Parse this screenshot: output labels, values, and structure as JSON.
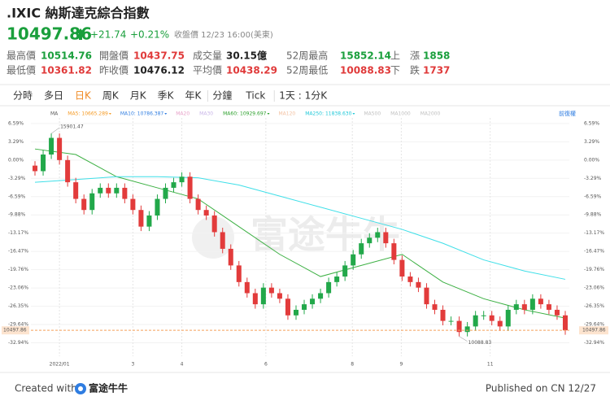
{
  "header": {
    "title": ".IXIC 納斯達克綜合指數",
    "price": "10497.86",
    "change": "+21.74",
    "change_pct": "+0.21%",
    "status": "收盤價 12/23 16:00(美東)",
    "up_color": "#1a9f3c",
    "down_color": "#e03a3a",
    "stats": [
      [
        {
          "label": "最高價",
          "value": "10514.76",
          "color": "#1a9f3c"
        },
        {
          "label": "開盤價",
          "value": "10437.75",
          "color": "#e03a3a"
        },
        {
          "label": "成交量",
          "value": "30.15億",
          "color": "#222222"
        },
        {
          "label": "52周最高",
          "value": "15852.14",
          "color": "#1a9f3c"
        },
        {
          "label": "上　漲",
          "value": "1858",
          "color": "#1a9f3c"
        }
      ],
      [
        {
          "label": "最低價",
          "value": "10361.82",
          "color": "#e03a3a"
        },
        {
          "label": "昨收價",
          "value": "10476.12",
          "color": "#222222"
        },
        {
          "label": "平均價",
          "value": "10438.29",
          "color": "#e03a3a"
        },
        {
          "label": "52周最低",
          "value": "10088.83",
          "color": "#e03a3a"
        },
        {
          "label": "下　跌",
          "value": "1737",
          "color": "#e03a3a"
        }
      ]
    ],
    "tabs": [
      "分時",
      "多日",
      "日K",
      "周K",
      "月K",
      "季K",
      "年K",
      "分鐘",
      "Tick",
      "1天 : 1分K"
    ],
    "active_tab": 2
  },
  "chart_data": {
    "type": "candlestick",
    "adjust_label": "前復權",
    "watermark": "富途牛牛",
    "up_color": "#22a84a",
    "down_color": "#e23b3b",
    "ma_legend": [
      {
        "name": "MA",
        "value": null,
        "color": "#555555"
      },
      {
        "name": "MA5:",
        "value": 10665.289,
        "color": "#f59a23"
      },
      {
        "name": "MA10:",
        "value": 10786.387,
        "color": "#2f7de1"
      },
      {
        "name": "MA20",
        "value": null,
        "color": "#e8a0c8"
      },
      {
        "name": "MA30",
        "value": null,
        "color": "#c8b4e8"
      },
      {
        "name": "MA60:",
        "value": 10929.697,
        "color": "#2ca02c"
      },
      {
        "name": "MA120",
        "value": null,
        "color": "#f3c0a0"
      },
      {
        "name": "MA250:",
        "value": 11838.63,
        "value_label": "11838.630",
        "color": "#1fc8d8"
      },
      {
        "name": "MA500",
        "value": null,
        "color": "#c0c0c0"
      },
      {
        "name": "MA1000",
        "value": null,
        "color": "#c0c0c0"
      },
      {
        "name": "MA2000",
        "value": null,
        "color": "#c0c0c0"
      }
    ],
    "ohlc": [
      [
        -1,
        -0.2,
        -2.8,
        -2
      ],
      [
        -2,
        1.8,
        -2.8,
        1
      ],
      [
        1,
        4.8,
        0.2,
        4
      ],
      [
        4,
        4.8,
        -0.8,
        0
      ],
      [
        0,
        0.8,
        -4.8,
        -4
      ],
      [
        -4,
        -3.2,
        -7.8,
        -7
      ],
      [
        -7,
        -6.2,
        -9.8,
        -9
      ],
      [
        -9,
        -5.2,
        -9.8,
        -6
      ],
      [
        -6,
        -4.2,
        -6.8,
        -5
      ],
      [
        -5,
        -4.2,
        -6.8,
        -6
      ],
      [
        -6,
        -4.2,
        -6.8,
        -5
      ],
      [
        -5,
        -4.2,
        -7.8,
        -7
      ],
      [
        -7,
        -6.2,
        -9.8,
        -9
      ],
      [
        -9,
        -8.2,
        -12.8,
        -12
      ],
      [
        -12,
        -9.2,
        -12.8,
        -10
      ],
      [
        -10,
        -6.2,
        -10.8,
        -7
      ],
      [
        -7,
        -4.2,
        -7.8,
        -5
      ],
      [
        -5,
        -3.2,
        -5.8,
        -4
      ],
      [
        -4,
        -2.2,
        -4.8,
        -3
      ],
      [
        -3,
        -2.2,
        -7.8,
        -7
      ],
      [
        -7,
        -6.2,
        -9.8,
        -9
      ],
      [
        -9,
        -8.2,
        -10.8,
        -10
      ],
      [
        -10,
        -9.2,
        -13.8,
        -13
      ],
      [
        -13,
        -12.2,
        -16.8,
        -16
      ],
      [
        -16,
        -15.2,
        -19.8,
        -19
      ],
      [
        -19,
        -18.2,
        -22.8,
        -22
      ],
      [
        -22,
        -21.2,
        -24.8,
        -24
      ],
      [
        -24,
        -23.2,
        -26.8,
        -26
      ],
      [
        -26,
        -22.2,
        -26.8,
        -23
      ],
      [
        -23,
        -22.2,
        -24.8,
        -24
      ],
      [
        -24,
        -23.2,
        -25.8,
        -25
      ],
      [
        -25,
        -24.2,
        -28.8,
        -28
      ],
      [
        -28,
        -26.2,
        -28.8,
        -27
      ],
      [
        -27,
        -25.2,
        -27.8,
        -26
      ],
      [
        -26,
        -24.2,
        -26.8,
        -25
      ],
      [
        -25,
        -23.2,
        -25.8,
        -24
      ],
      [
        -24,
        -21.2,
        -24.8,
        -22
      ],
      [
        -22,
        -20.2,
        -22.8,
        -21
      ],
      [
        -21,
        -18.2,
        -21.8,
        -19
      ],
      [
        -19,
        -16.2,
        -19.8,
        -17
      ],
      [
        -17,
        -14.2,
        -17.8,
        -15
      ],
      [
        -15,
        -13.2,
        -15.8,
        -14
      ],
      [
        -14,
        -12.2,
        -14.8,
        -13
      ],
      [
        -13,
        -12.2,
        -15.8,
        -15
      ],
      [
        -15,
        -14.2,
        -18.8,
        -18
      ],
      [
        -18,
        -17.2,
        -21.8,
        -21
      ],
      [
        -21,
        -20.2,
        -22.8,
        -22
      ],
      [
        -22,
        -21.2,
        -23.8,
        -23
      ],
      [
        -23,
        -22.2,
        -26.8,
        -26
      ],
      [
        -26,
        -25.2,
        -27.8,
        -27
      ],
      [
        -27,
        -26.2,
        -29.8,
        -29
      ],
      [
        -29,
        -28.2,
        -29.8,
        -29
      ],
      [
        -29,
        -28.2,
        -31.8,
        -31
      ],
      [
        -31,
        -29.2,
        -31.8,
        -30
      ],
      [
        -30,
        -27.2,
        -30.8,
        -28
      ],
      [
        -28,
        -27.2,
        -28.8,
        -28
      ],
      [
        -28,
        -27.2,
        -29.8,
        -29
      ],
      [
        -29,
        -28.2,
        -30.8,
        -30
      ],
      [
        -30,
        -26.2,
        -30.8,
        -27
      ],
      [
        -27,
        -25.2,
        -27.8,
        -26
      ],
      [
        -26,
        -25.2,
        -27.8,
        -27
      ],
      [
        -27,
        -24.2,
        -27.8,
        -25
      ],
      [
        -25,
        -24.2,
        -26.8,
        -26
      ],
      [
        -26,
        -25.2,
        -27.8,
        -27
      ],
      [
        -27,
        -26.2,
        -28.8,
        -28
      ],
      [
        -28,
        -27.2,
        -31.5,
        -30.7
      ]
    ],
    "lines": [
      {
        "color": "#3cb043",
        "x": [
          0,
          5,
          10,
          15,
          20,
          25,
          30,
          35,
          40,
          45,
          50,
          55,
          60,
          65
        ],
        "values": [
          2,
          1,
          -3,
          -5,
          -7,
          -12,
          -17,
          -21,
          -19,
          -17,
          -22,
          -25,
          -27,
          -28.5
        ]
      },
      {
        "color": "#3fdfe8",
        "x": [
          0,
          5,
          10,
          15,
          20,
          25,
          30,
          35,
          40,
          45,
          50,
          55,
          60,
          65
        ],
        "values": [
          -4,
          -3.5,
          -3,
          -3,
          -3.2,
          -4.5,
          -6.5,
          -8.5,
          -10.5,
          -12.5,
          -15,
          -18,
          -20,
          -21.5
        ]
      }
    ],
    "high_label": {
      "index": 2,
      "label": "15901.47"
    },
    "low_label": {
      "index": 52,
      "label": "10088.83"
    },
    "last_price": {
      "value": -30.7,
      "label": "10497.86",
      "color": "#f5a05a"
    },
    "xlim": [
      0,
      66
    ],
    "xticks": [
      {
        "value": 3.5,
        "label": "2022/01"
      },
      {
        "value": 12.5,
        "label": "3"
      },
      {
        "value": 18.5,
        "label": "4"
      },
      {
        "value": 28.8,
        "label": "6"
      },
      {
        "value": 39.4,
        "label": "8"
      },
      {
        "value": 45.4,
        "label": "9"
      },
      {
        "value": 56.3,
        "label": "11"
      }
    ],
    "ylim": [
      -33.9,
      7.6
    ],
    "yticks": [
      {
        "value": 6.59,
        "label": "6.59%"
      },
      {
        "value": 3.29,
        "label": "3.29%"
      },
      {
        "value": 0,
        "label": "0.00%"
      },
      {
        "value": -3.29,
        "label": "-3.29%"
      },
      {
        "value": -6.59,
        "label": "-6.59%"
      },
      {
        "value": -9.88,
        "label": "-9.88%"
      },
      {
        "value": -13.17,
        "label": "-13.17%"
      },
      {
        "value": -16.47,
        "label": "-16.47%"
      },
      {
        "value": -19.76,
        "label": "-19.76%"
      },
      {
        "value": -23.06,
        "label": "-23.06%"
      },
      {
        "value": -26.35,
        "label": "-26.35%"
      },
      {
        "value": -29.64,
        "label": "-29.64%"
      },
      {
        "value": -32.94,
        "label": "-32.94%"
      }
    ],
    "grid": true
  },
  "footer": {
    "created": "Created with",
    "brand": "富途牛牛",
    "published": "Published on CN 12/27"
  }
}
